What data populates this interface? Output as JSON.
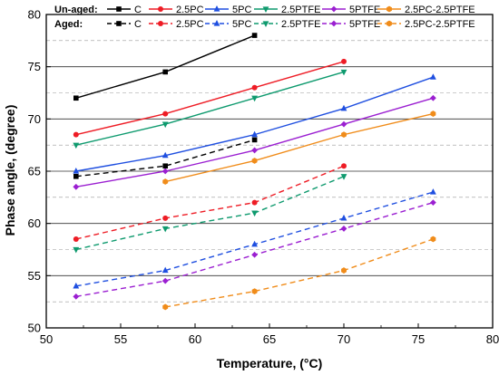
{
  "chart_data": {
    "type": "line",
    "xlabel": "Temperature, (°C)",
    "ylabel": "Phase angle, (degree)",
    "xlim": [
      50,
      80
    ],
    "ylim": [
      50,
      80
    ],
    "xticks": [
      "50",
      "55",
      "60",
      "65",
      "70",
      "75",
      "80"
    ],
    "yticks": [
      "50",
      "55",
      "60",
      "65",
      "70",
      "75",
      "80"
    ],
    "grid": "horizontal dashed",
    "legend": {
      "placement": "top",
      "group_labels": [
        "Un-aged:",
        "Aged:"
      ]
    },
    "series": [
      {
        "name": "C",
        "group": "Un-aged",
        "color": "#000000",
        "marker": "square",
        "dashed": false,
        "x": [
          52,
          58,
          64
        ],
        "y": [
          72.0,
          74.5,
          78.0
        ]
      },
      {
        "name": "2.5PC",
        "group": "Un-aged",
        "color": "#ee1c25",
        "marker": "circle",
        "dashed": false,
        "x": [
          52,
          58,
          64,
          70
        ],
        "y": [
          68.5,
          70.5,
          73.0,
          75.5
        ]
      },
      {
        "name": "5PC",
        "group": "Un-aged",
        "color": "#1f4fe0",
        "marker": "triangle-up",
        "dashed": false,
        "x": [
          52,
          58,
          64,
          70,
          76
        ],
        "y": [
          65.0,
          66.5,
          68.5,
          71.0,
          74.0
        ]
      },
      {
        "name": "2.5PTFE",
        "group": "Un-aged",
        "color": "#0e9a6e",
        "marker": "triangle-down",
        "dashed": false,
        "x": [
          52,
          58,
          64,
          70
        ],
        "y": [
          67.5,
          69.5,
          72.0,
          74.5
        ]
      },
      {
        "name": "5PTFE",
        "group": "Un-aged",
        "color": "#9b1fd1",
        "marker": "diamond",
        "dashed": false,
        "x": [
          52,
          58,
          64,
          70,
          76
        ],
        "y": [
          63.5,
          65.0,
          67.0,
          69.5,
          72.0
        ]
      },
      {
        "name": "2.5PC-2.5PTFE",
        "group": "Un-aged",
        "color": "#f08c1a",
        "marker": "hexagon",
        "dashed": false,
        "x": [
          58,
          64,
          70,
          76
        ],
        "y": [
          64.0,
          66.0,
          68.5,
          70.5
        ]
      },
      {
        "name": "C",
        "group": "Aged",
        "color": "#000000",
        "marker": "square",
        "dashed": true,
        "x": [
          52,
          58,
          64
        ],
        "y": [
          64.5,
          65.5,
          68.0
        ]
      },
      {
        "name": "2.5PC",
        "group": "Aged",
        "color": "#ee1c25",
        "marker": "circle",
        "dashed": true,
        "x": [
          52,
          58,
          64,
          70
        ],
        "y": [
          58.5,
          60.5,
          62.0,
          65.5
        ]
      },
      {
        "name": "5PC",
        "group": "Aged",
        "color": "#1f4fe0",
        "marker": "triangle-up",
        "dashed": true,
        "x": [
          52,
          58,
          64,
          70,
          76
        ],
        "y": [
          54.0,
          55.5,
          58.0,
          60.5,
          63.0
        ]
      },
      {
        "name": "2.5PTFE",
        "group": "Aged",
        "color": "#0e9a6e",
        "marker": "triangle-down",
        "dashed": true,
        "x": [
          52,
          58,
          64,
          70
        ],
        "y": [
          57.5,
          59.5,
          61.0,
          64.5
        ]
      },
      {
        "name": "5PTFE",
        "group": "Aged",
        "color": "#9b1fd1",
        "marker": "diamond",
        "dashed": true,
        "x": [
          52,
          58,
          64,
          70,
          76
        ],
        "y": [
          53.0,
          54.5,
          57.0,
          59.5,
          62.0
        ]
      },
      {
        "name": "2.5PC-2.5PTFE",
        "group": "Aged",
        "color": "#f08c1a",
        "marker": "hexagon",
        "dashed": true,
        "x": [
          58,
          64,
          70,
          76
        ],
        "y": [
          52.0,
          53.5,
          55.5,
          58.5
        ]
      }
    ]
  }
}
